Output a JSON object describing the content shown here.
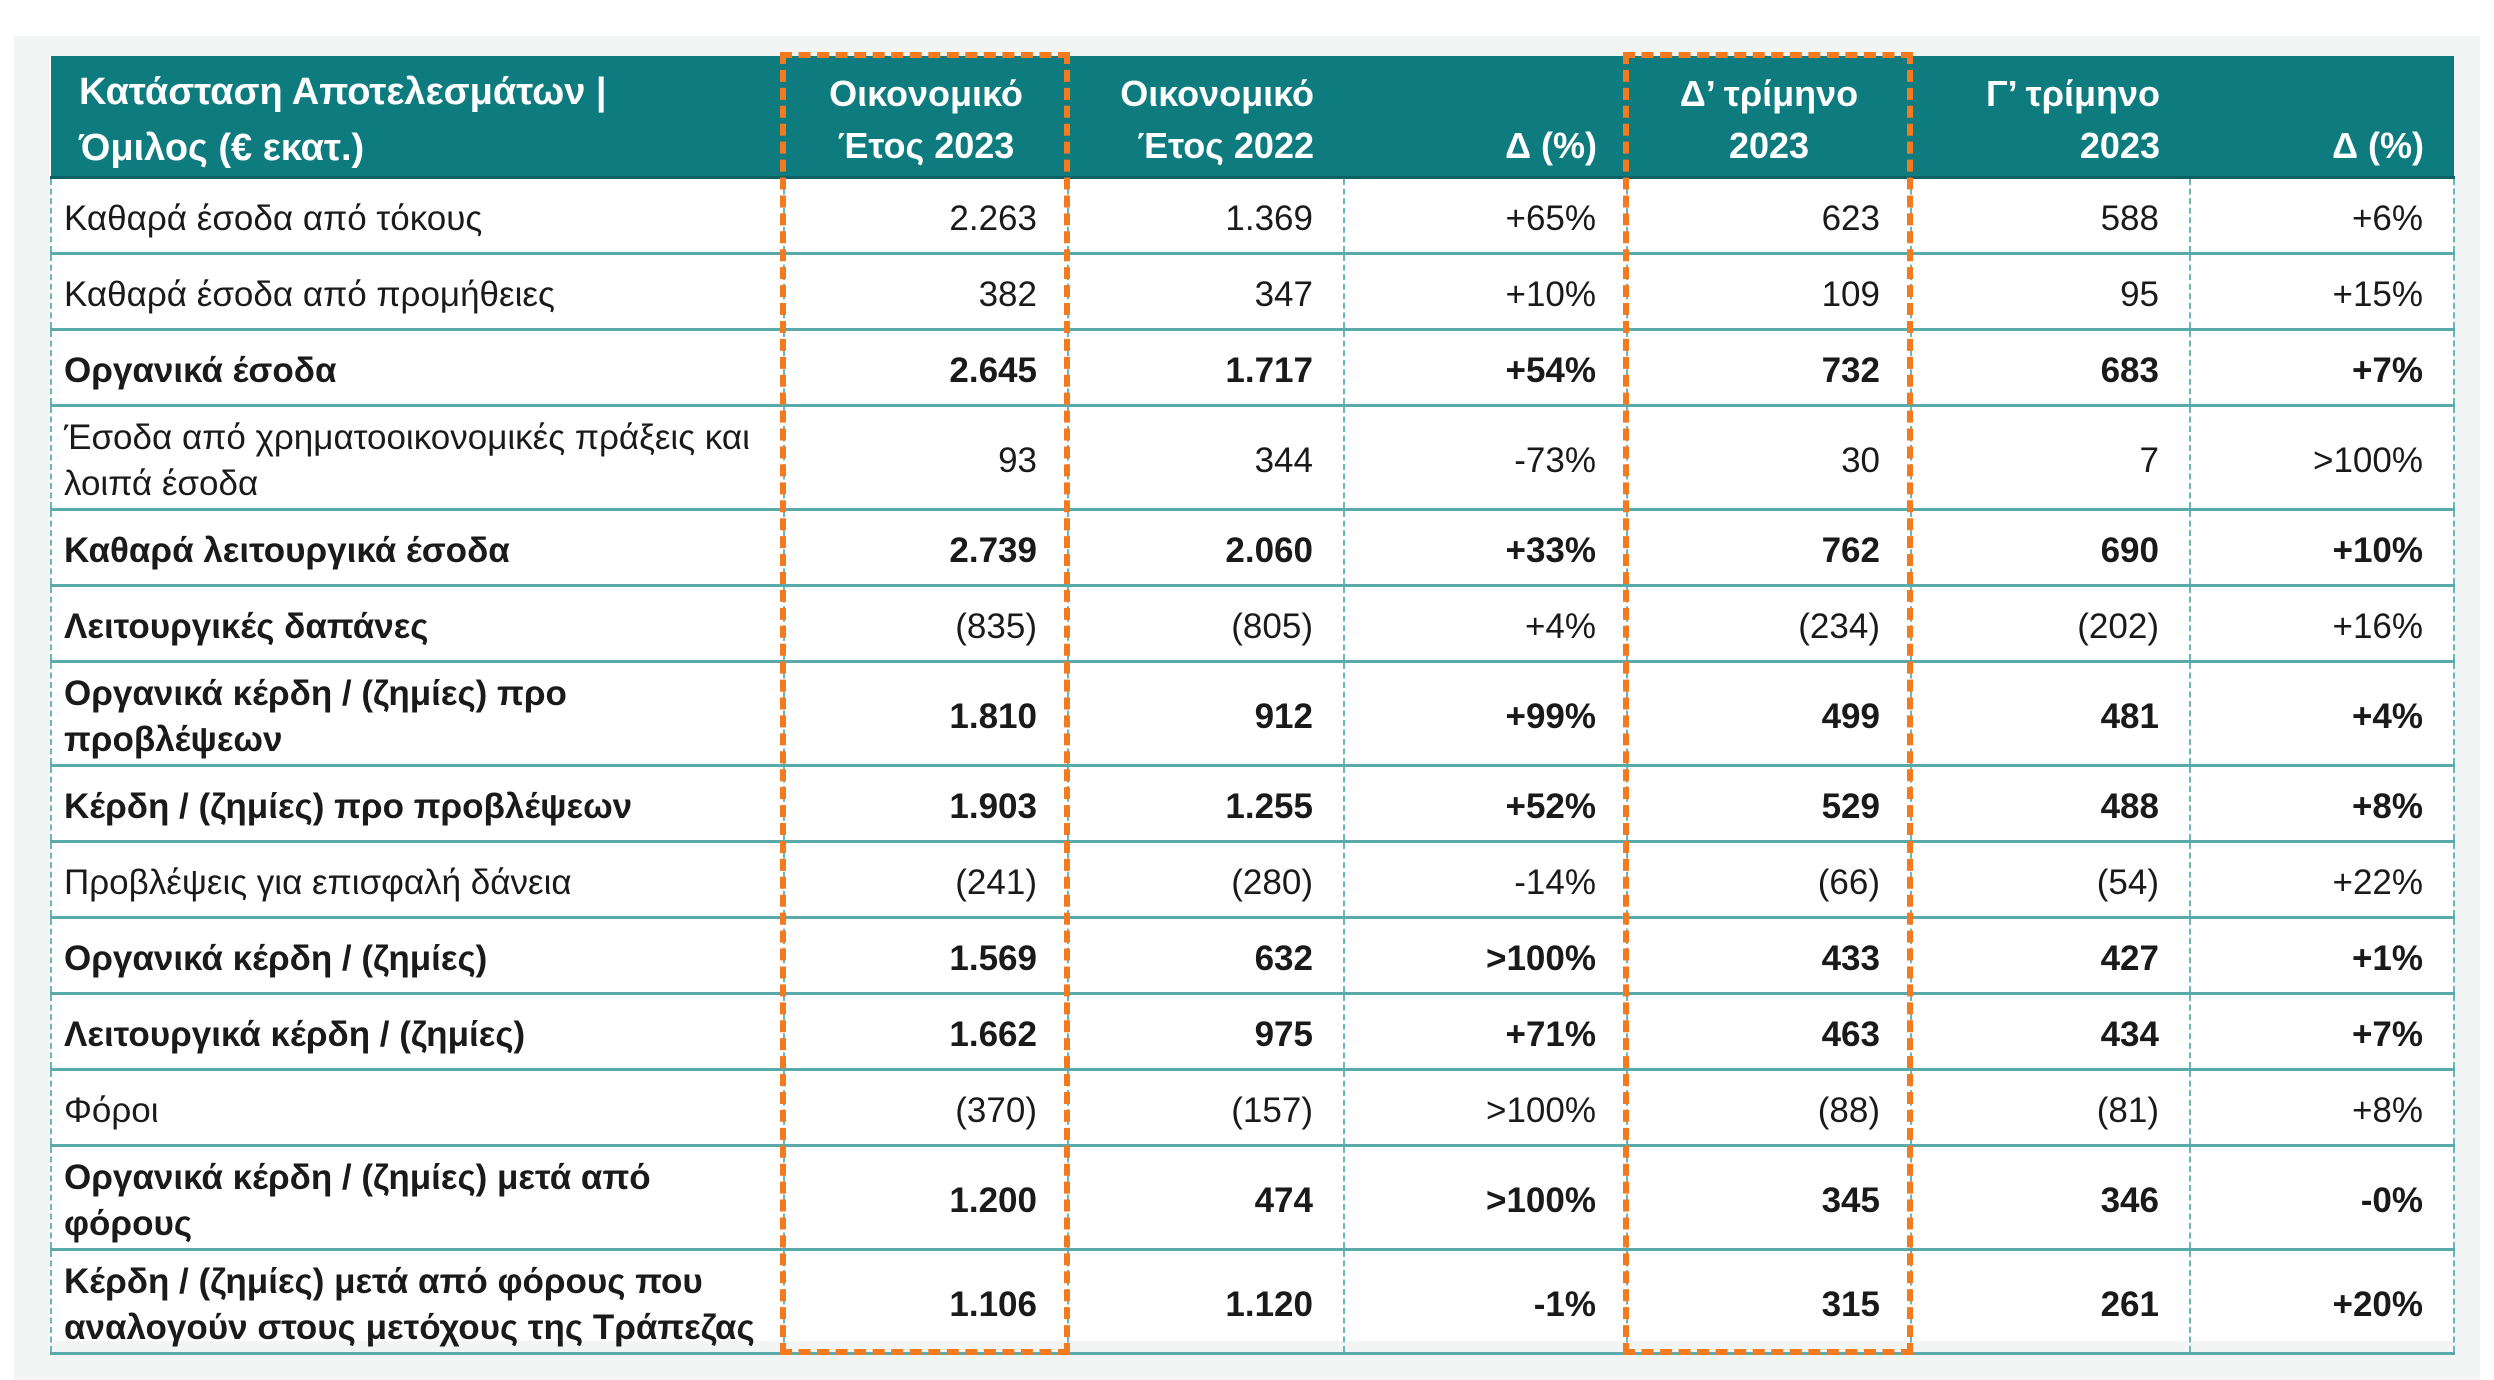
{
  "table": {
    "headers": [
      "Κατάσταση Αποτελεσμάτων | Όμιλος (€ εκατ.)",
      "Οικονομικό Έτος 2023",
      "Οικονομικό Έτος 2022",
      "Δ (%)",
      "Δ’ τρίμηνο 2023",
      "Γ’ τρίμηνο 2023",
      "Δ (%)"
    ],
    "header_lines": [
      [
        "Κατάσταση Αποτελεσμάτων |",
        "Όμιλος (€ εκατ.)"
      ],
      [
        "Οικονομικό",
        "Έτος 2023"
      ],
      [
        "Οικονομικό",
        "Έτος 2022"
      ],
      [
        "",
        "Δ (%)"
      ],
      [
        "Δ’ τρίμηνο",
        "2023"
      ],
      [
        "Γ’ τρίμηνο",
        "2023"
      ],
      [
        "",
        "Δ (%)"
      ]
    ],
    "rows": [
      {
        "cells": [
          "Καθαρά έσοδα από τόκους",
          "2.263",
          "1.369",
          "+65%",
          "623",
          "588",
          "+6%"
        ],
        "bold": false,
        "tall": false
      },
      {
        "cells": [
          "Καθαρά έσοδα από προμήθειες",
          "382",
          "347",
          "+10%",
          "109",
          "95",
          "+15%"
        ],
        "bold": false,
        "tall": false
      },
      {
        "cells": [
          "Οργανικά έσοδα",
          "2.645",
          "1.717",
          "+54%",
          "732",
          "683",
          "+7%"
        ],
        "bold": true,
        "tall": false
      },
      {
        "cells": [
          "Έσοδα από χρηματοοικονομικές πράξεις και λοιπά έσοδα",
          "93",
          "344",
          "-73%",
          "30",
          "7",
          ">100%"
        ],
        "bold": false,
        "tall": true
      },
      {
        "cells": [
          "Καθαρά λειτουργικά έσοδα",
          "2.739",
          "2.060",
          "+33%",
          "762",
          "690",
          "+10%"
        ],
        "bold": true,
        "tall": false
      },
      {
        "cells": [
          "Λειτουργικές δαπάνες",
          "(835)",
          "(805)",
          "+4%",
          "(234)",
          "(202)",
          "+16%"
        ],
        "bold": true,
        "tall": false,
        "label_bold_only": true
      },
      {
        "cells": [
          "Οργανικά κέρδη / (ζημίες) προ προβλέψεων",
          "1.810",
          "912",
          "+99%",
          "499",
          "481",
          "+4%"
        ],
        "bold": true,
        "tall": true
      },
      {
        "cells": [
          "Κέρδη / (ζημίες) προ προβλέψεων",
          "1.903",
          "1.255",
          "+52%",
          "529",
          "488",
          "+8%"
        ],
        "bold": true,
        "tall": false
      },
      {
        "cells": [
          "Προβλέψεις για επισφαλή δάνεια",
          "(241)",
          "(280)",
          "-14%",
          "(66)",
          "(54)",
          "+22%"
        ],
        "bold": false,
        "tall": false
      },
      {
        "cells": [
          "Οργανικά κέρδη / (ζημίες)",
          "1.569",
          "632",
          ">100%",
          "433",
          "427",
          "+1%"
        ],
        "bold": true,
        "tall": false
      },
      {
        "cells": [
          "Λειτουργικά κέρδη / (ζημίες)",
          "1.662",
          "975",
          "+71%",
          "463",
          "434",
          "+7%"
        ],
        "bold": true,
        "tall": false
      },
      {
        "cells": [
          "Φόροι",
          "(370)",
          "(157)",
          ">100%",
          "(88)",
          "(81)",
          "+8%"
        ],
        "bold": false,
        "tall": false
      },
      {
        "cells": [
          "Οργανικά κέρδη / (ζημίες) μετά από φόρους",
          "1.200",
          "474",
          ">100%",
          "345",
          "346",
          "-0%"
        ],
        "bold": true,
        "tall": true
      },
      {
        "cells": [
          "Κέρδη / (ζημίες) μετά από φόρους που αναλογούν στους μετόχους της Τράπεζας",
          "1.106",
          "1.120",
          "-1%",
          "315",
          "261",
          "+20%"
        ],
        "bold": true,
        "tall": true
      }
    ]
  },
  "highlights": {
    "color": "#f47a20",
    "columns": [
      "Οικονομικό Έτος 2023",
      "Δ’ τρίμηνο 2023"
    ]
  },
  "colors": {
    "header_bg": "#0e7b7f",
    "grid": "#5aa9ab"
  }
}
